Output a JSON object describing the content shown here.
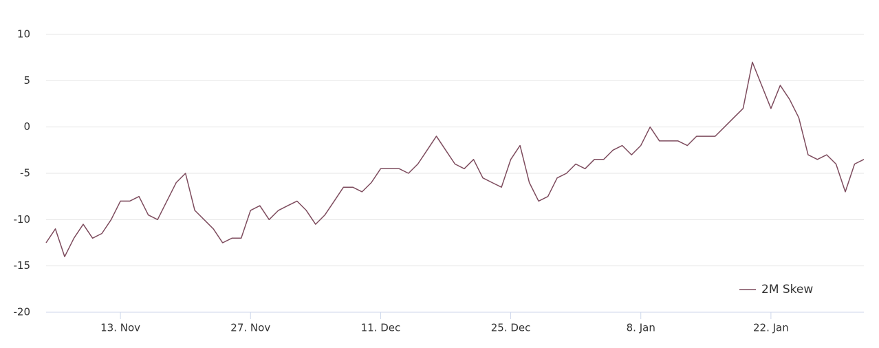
{
  "chart_data": {
    "type": "line",
    "categories": [
      null,
      null,
      null,
      null,
      null,
      null,
      null,
      null,
      "13. Nov",
      null,
      null,
      null,
      null,
      null,
      null,
      null,
      null,
      null,
      null,
      null,
      null,
      null,
      "27. Nov",
      null,
      null,
      null,
      null,
      null,
      null,
      null,
      null,
      null,
      null,
      null,
      null,
      null,
      "11. Dec",
      null,
      null,
      null,
      null,
      null,
      null,
      null,
      null,
      null,
      null,
      null,
      null,
      null,
      "25. Dec",
      null,
      null,
      null,
      null,
      null,
      null,
      null,
      null,
      null,
      null,
      null,
      null,
      null,
      "8. Jan",
      null,
      null,
      null,
      null,
      null,
      null,
      null,
      null,
      null,
      null,
      null,
      null,
      null,
      "22. Jan",
      null,
      null,
      null,
      null,
      null,
      null,
      null,
      null,
      null,
      null
    ],
    "series": [
      {
        "name": "2M Skew",
        "color": "#7d4b5d",
        "values": [
          -12.5,
          -11,
          -14,
          -12,
          -10.5,
          -12,
          -11.5,
          -10,
          -8,
          -8,
          -7.5,
          -9.5,
          -10,
          -8,
          -6,
          -5,
          -9,
          -10,
          -11,
          -12.5,
          -12,
          -12,
          -9,
          -8.5,
          -10,
          -9,
          -8.5,
          -8,
          -9,
          -10.5,
          -9.5,
          -8,
          -6.5,
          -6.5,
          -7,
          -6,
          -4.5,
          -4.5,
          -4.5,
          -5,
          -4,
          -2.5,
          -1,
          -2.5,
          -4,
          -4.5,
          -3.5,
          -5.5,
          -6,
          -6.5,
          -3.5,
          -2,
          -6,
          -8,
          -7.5,
          -5.5,
          -5,
          -4,
          -4.5,
          -3.5,
          -3.5,
          -2.5,
          -2,
          -3,
          -2,
          0,
          -1.5,
          -1.5,
          -1.5,
          -2,
          -1,
          -1,
          -1,
          0,
          1,
          2,
          7,
          4.5,
          2,
          4.5,
          3,
          1,
          -3,
          -3.5,
          -3,
          -4,
          -7,
          -4,
          -3.5
        ]
      }
    ],
    "ylim": [
      -20,
      10
    ],
    "yticks": [
      -20,
      -15,
      -10,
      -5,
      0,
      5,
      10
    ],
    "grid": true,
    "legend": "bottom-right"
  }
}
